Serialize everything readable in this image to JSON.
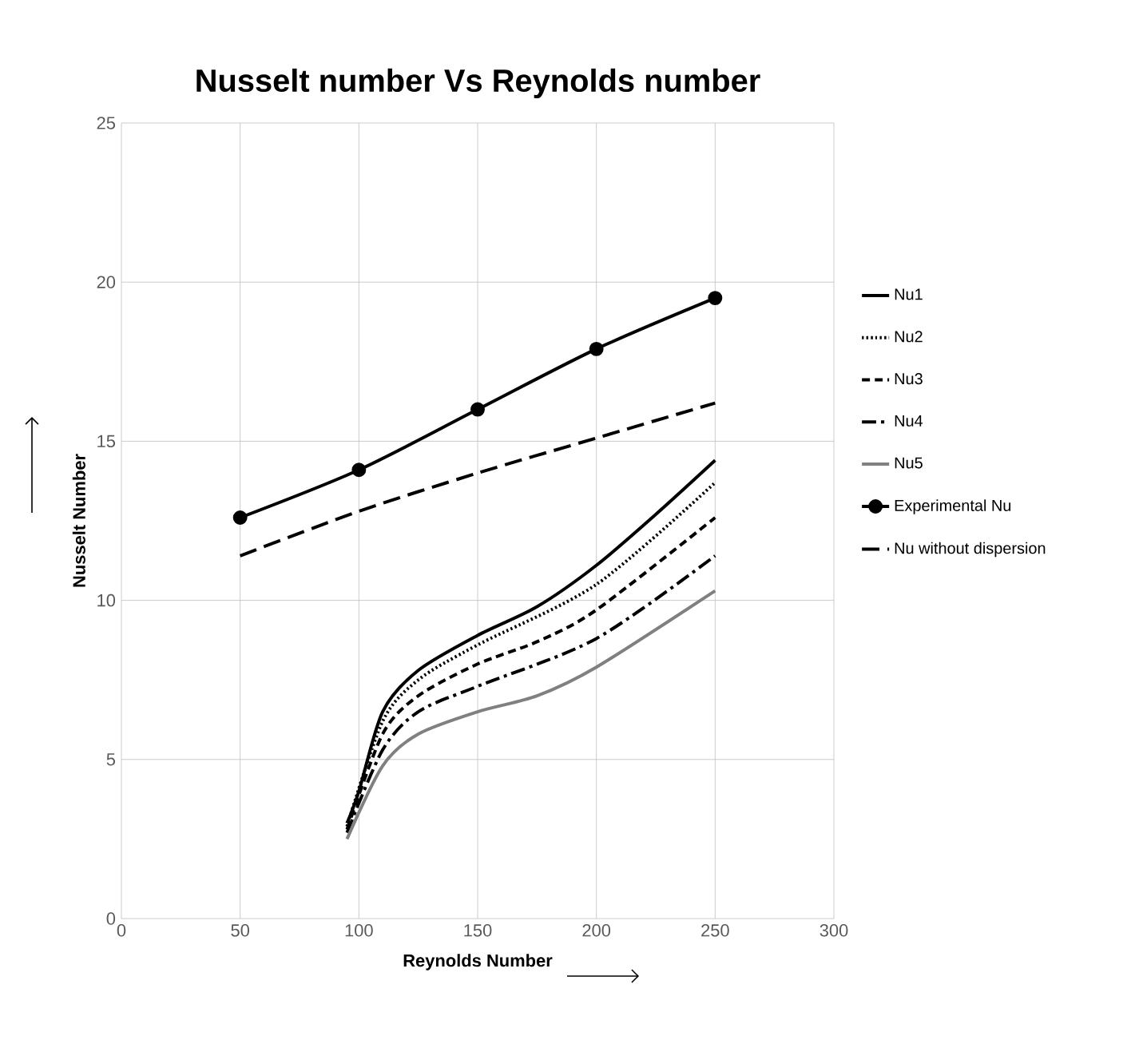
{
  "chart_data": {
    "type": "line",
    "title": "Nusselt number Vs Reynolds number",
    "xlabel": "Reynolds Number",
    "ylabel": "Nusselt Number",
    "xlim": [
      0,
      300
    ],
    "xticks": [
      0,
      50,
      100,
      150,
      200,
      250,
      300
    ],
    "ylim": [
      0,
      25
    ],
    "yticks": [
      0,
      5,
      10,
      15,
      20,
      25
    ],
    "grid": true,
    "legend": "right",
    "series": [
      {
        "name": "Nu1",
        "color": "#000000",
        "line_style": "solid",
        "x": [
          95,
          100,
          110,
          125,
          150,
          175,
          200,
          225,
          250
        ],
        "values": [
          3,
          4,
          6.5,
          7.8,
          8.9,
          9.8,
          11.1,
          12.7,
          14.4
        ]
      },
      {
        "name": "Nu2",
        "color": "#000000",
        "line_style": "dotted",
        "x": [
          95,
          110,
          125,
          150,
          200,
          250
        ],
        "values": [
          2.9,
          6.2,
          7.5,
          8.6,
          10.5,
          13.7
        ]
      },
      {
        "name": "Nu3",
        "color": "#000000",
        "line_style": "dashed",
        "x": [
          95,
          110,
          125,
          150,
          175,
          200,
          250
        ],
        "values": [
          2.8,
          5.8,
          7.0,
          8.0,
          8.7,
          9.7,
          12.6
        ]
      },
      {
        "name": "Nu4",
        "color": "#000000",
        "line_style": "dashdot",
        "x": [
          95,
          110,
          125,
          150,
          200,
          250
        ],
        "values": [
          2.7,
          5.3,
          6.5,
          7.3,
          8.8,
          11.4
        ]
      },
      {
        "name": "Nu5",
        "color": "#808080",
        "line_style": "solid",
        "x": [
          95,
          110,
          125,
          150,
          175,
          200,
          250
        ],
        "values": [
          2.5,
          4.8,
          5.8,
          6.5,
          7.0,
          7.9,
          10.3
        ]
      },
      {
        "name": "Experimental Nu",
        "color": "#000000",
        "line_style": "solid",
        "marker": "circle",
        "x": [
          50,
          100,
          150,
          200,
          250
        ],
        "values": [
          12.6,
          14.1,
          16,
          17.9,
          19.5
        ]
      },
      {
        "name": "Nu without dispersion",
        "color": "#000000",
        "line_style": "longdashed",
        "x": [
          50,
          100,
          150,
          200,
          250
        ],
        "values": [
          11.4,
          12.8,
          14,
          15.1,
          16.2
        ]
      }
    ]
  }
}
